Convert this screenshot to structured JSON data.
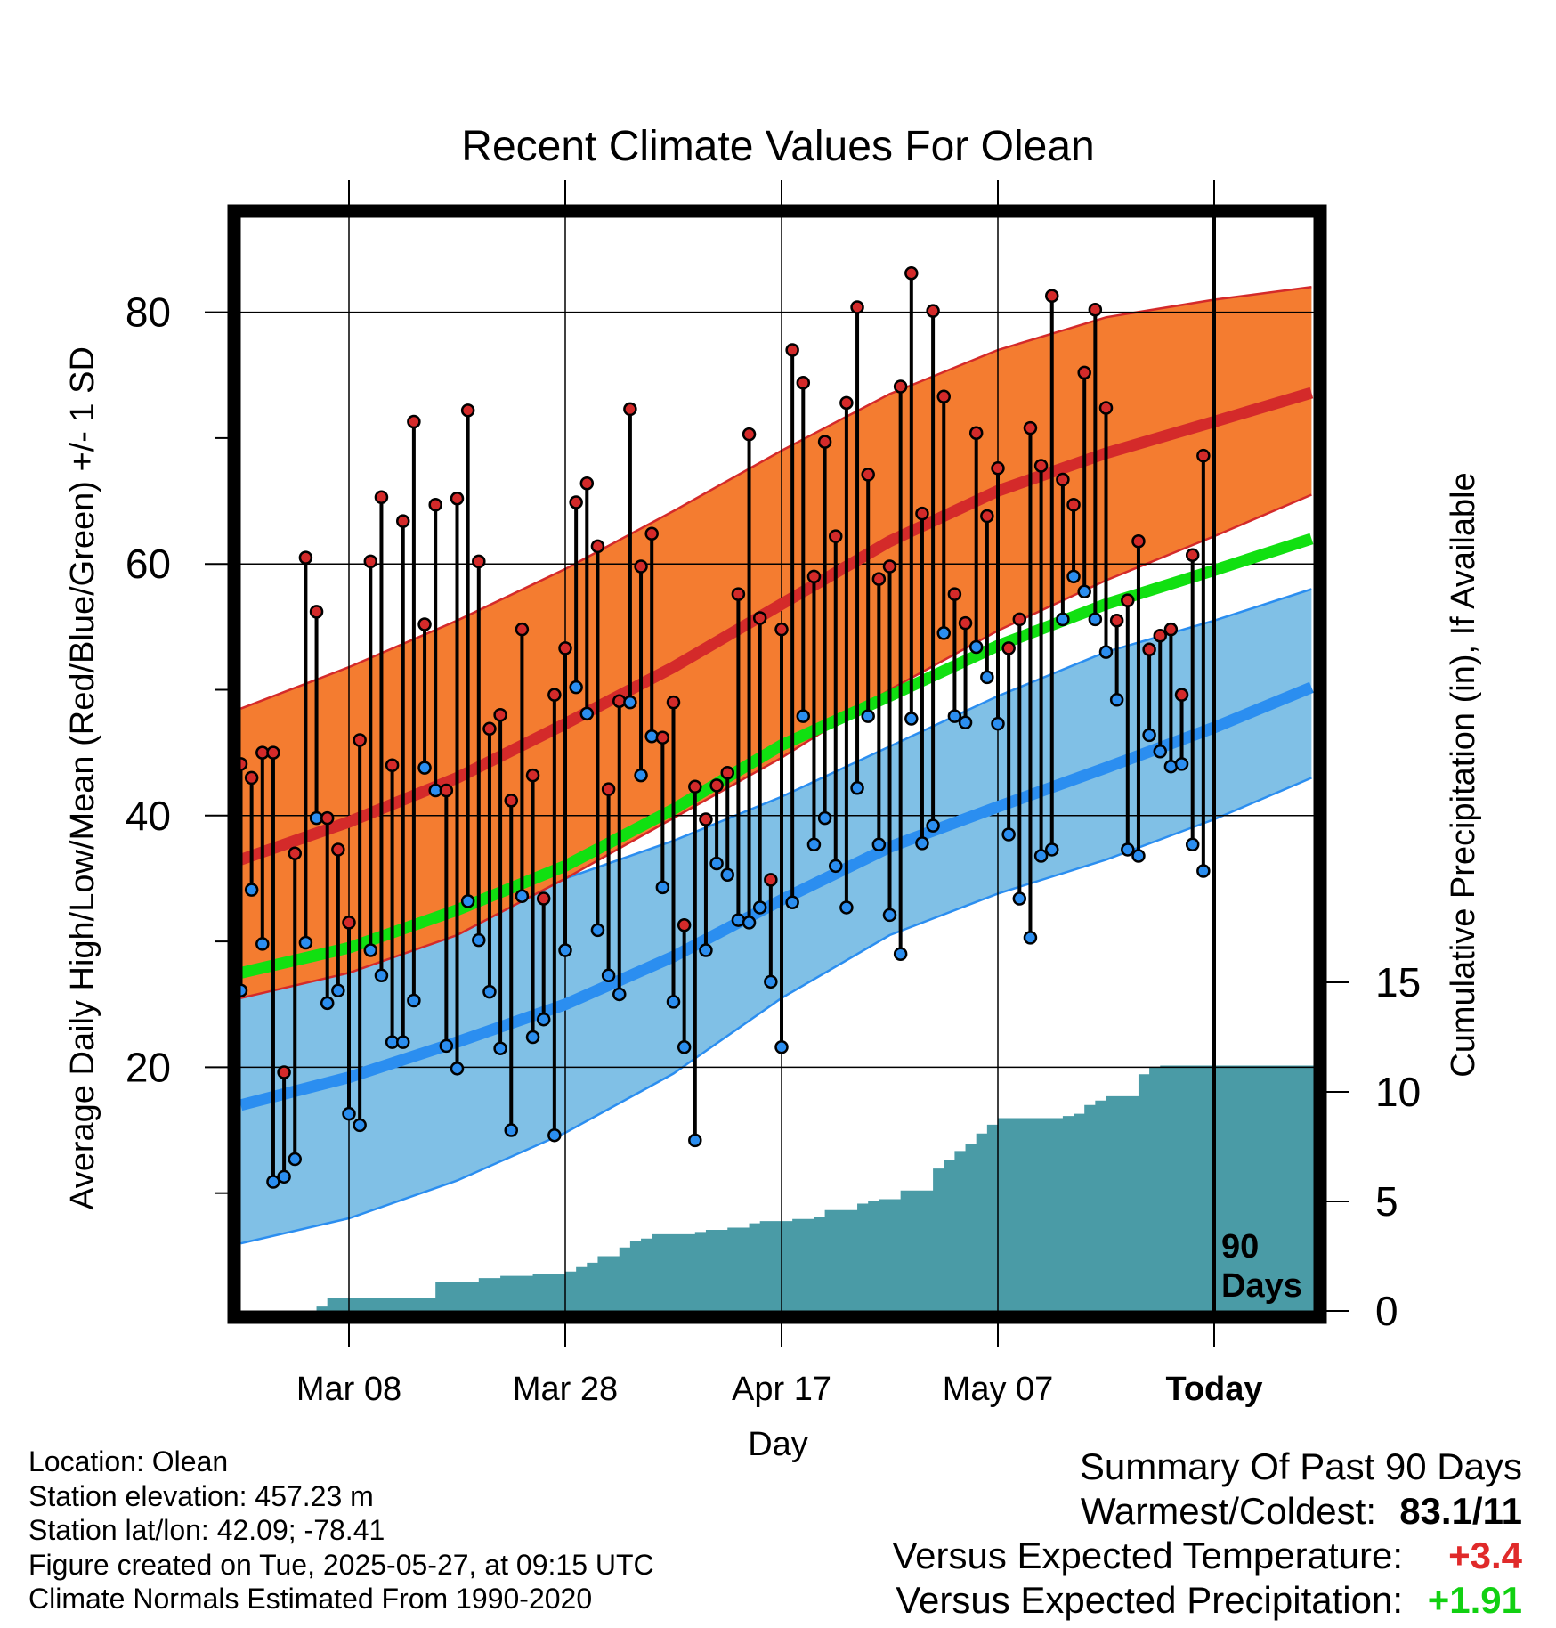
{
  "chart_data": {
    "type": "line",
    "title": "Recent Climate Values For Olean",
    "ylabel": "Average Daily High/Low/Mean (Red/Blue/Green) +/- 1 SD",
    "y2label": "Cumulative Precipitation (in), If Available",
    "xlabel": "Day",
    "ylim": [
      0,
      87
    ],
    "y2lim": [
      0,
      30
    ],
    "xlim": [
      -10,
      89
    ],
    "x_tick_labels": [
      {
        "day": 0,
        "label": "Mar 08"
      },
      {
        "day": 20,
        "label": "Mar 28"
      },
      {
        "day": 40,
        "label": "Apr 17"
      },
      {
        "day": 60,
        "label": "May 07"
      },
      {
        "day": 80,
        "label": "Today"
      }
    ],
    "y_ticks": [
      20,
      40,
      60,
      80
    ],
    "y2_ticks": [
      0,
      5,
      10,
      15
    ],
    "grid": true,
    "today_day": 80,
    "annotation": [
      "90",
      "Days"
    ],
    "colors": {
      "high_band": "#f47c30",
      "high_mean": "#d42a2a",
      "low_band": "#80c0e6",
      "low_mean": "#2b8ef0",
      "mean_line": "#11e011",
      "precip": "#4a9ba6",
      "high_dot": "#d42a2a",
      "low_dot": "#2b8ef0"
    },
    "normals_x": [
      -10,
      0,
      10,
      20,
      30,
      40,
      50,
      60,
      70,
      80,
      89
    ],
    "normal_high": {
      "mean": [
        36.5,
        39.5,
        43.0,
        47.3,
        51.8,
        56.8,
        61.8,
        65.8,
        68.8,
        71.3,
        73.6
      ],
      "upper": [
        48.5,
        51.8,
        55.5,
        59.6,
        64.2,
        69.0,
        73.5,
        77.0,
        79.6,
        81.0,
        82.0
      ],
      "lower": [
        25.5,
        27.5,
        30.5,
        35.0,
        39.8,
        44.6,
        50.0,
        54.7,
        58.7,
        62.2,
        65.5
      ]
    },
    "normal_low": {
      "mean": [
        17.0,
        19.2,
        22.0,
        25.0,
        28.8,
        33.3,
        37.5,
        40.7,
        43.8,
        47.0,
        50.2
      ],
      "upper": [
        28.5,
        30.2,
        32.5,
        35.0,
        38.0,
        41.5,
        45.5,
        49.5,
        53.0,
        55.5,
        58.0
      ],
      "lower": [
        6.0,
        8.0,
        11.0,
        14.8,
        19.5,
        25.5,
        30.5,
        33.8,
        36.5,
        39.7,
        43.0
      ]
    },
    "normal_mean": [
      27.5,
      29.5,
      32.5,
      36.0,
      40.5,
      45.6,
      49.5,
      53.5,
      56.8,
      59.5,
      62.0
    ],
    "daily_high": [
      44.1,
      43.0,
      45.0,
      45.0,
      19.6,
      37.0,
      60.5,
      56.2,
      39.8,
      37.3,
      31.5,
      46.0,
      60.2,
      65.3,
      44.0,
      63.4,
      71.3,
      55.2,
      64.7,
      42.0,
      65.2,
      72.2,
      60.2,
      46.9,
      48.0,
      41.2,
      54.8,
      43.2,
      33.4,
      49.6,
      53.3,
      64.9,
      66.4,
      61.4,
      42.1,
      49.1,
      72.3,
      59.8,
      62.4,
      46.2,
      49.0,
      31.3,
      42.3,
      39.7,
      42.4,
      43.4,
      57.6,
      70.3,
      55.7,
      34.9,
      54.8,
      77.0,
      74.4,
      59.0,
      69.7,
      62.2,
      72.8,
      80.4,
      67.1,
      58.8,
      59.8,
      74.1,
      83.1,
      64.0,
      80.1,
      73.3,
      57.6,
      55.3,
      70.4,
      63.8,
      67.6,
      53.3,
      55.6,
      70.8,
      67.8,
      81.3,
      66.7,
      64.7,
      75.2,
      80.2,
      72.4,
      55.5,
      57.1,
      61.8,
      53.2,
      54.3,
      54.8,
      49.6,
      60.7,
      68.6
    ],
    "daily_low": [
      26.1,
      34.1,
      29.8,
      10.9,
      11.3,
      12.7,
      29.9,
      39.8,
      25.1,
      26.1,
      16.3,
      15.4,
      29.3,
      27.3,
      22.0,
      22.0,
      25.3,
      43.8,
      42.0,
      21.7,
      19.9,
      33.2,
      30.1,
      26.0,
      21.5,
      15.0,
      33.6,
      22.4,
      23.8,
      14.6,
      29.3,
      50.2,
      48.1,
      30.9,
      27.3,
      25.8,
      49.0,
      43.2,
      46.3,
      34.3,
      25.2,
      21.6,
      14.2,
      29.3,
      36.2,
      35.3,
      31.7,
      31.5,
      32.7,
      26.8,
      21.6,
      33.1,
      47.9,
      37.7,
      39.8,
      36.0,
      32.7,
      42.2,
      47.9,
      37.7,
      32.1,
      29.0,
      47.7,
      37.8,
      39.2,
      54.5,
      47.9,
      47.4,
      53.4,
      51.0,
      47.3,
      38.5,
      33.4,
      30.3,
      36.8,
      37.3,
      55.6,
      59.0,
      57.8,
      55.6,
      53.0,
      49.2,
      37.3,
      36.8,
      46.4,
      45.1,
      43.9,
      44.1,
      37.7,
      35.6
    ],
    "precip_cum": [
      0,
      0,
      0,
      0,
      0,
      0,
      0,
      0.2,
      0.6,
      0.6,
      0.6,
      0.6,
      0.6,
      0.6,
      0.6,
      0.6,
      0.6,
      0.6,
      1.3,
      1.3,
      1.3,
      1.3,
      1.5,
      1.5,
      1.6,
      1.6,
      1.6,
      1.7,
      1.7,
      1.7,
      1.8,
      2.0,
      2.2,
      2.5,
      2.5,
      2.9,
      3.2,
      3.3,
      3.5,
      3.5,
      3.5,
      3.5,
      3.6,
      3.7,
      3.7,
      3.8,
      3.8,
      4.0,
      4.1,
      4.1,
      4.1,
      4.2,
      4.2,
      4.3,
      4.6,
      4.6,
      4.6,
      4.9,
      5.0,
      5.1,
      5.1,
      5.5,
      5.5,
      5.5,
      6.5,
      6.9,
      7.3,
      7.6,
      8.1,
      8.5,
      8.8,
      8.8,
      8.8,
      8.8,
      8.8,
      8.8,
      8.9,
      9.0,
      9.4,
      9.6,
      9.8,
      9.8,
      9.8,
      10.8,
      11.1,
      11.2,
      11.2,
      11.2,
      11.2,
      11.2
    ]
  },
  "info": {
    "location": "Location: Olean",
    "elevation": "Station elevation: 457.23 m",
    "latlon": "Station lat/lon: 42.09; -78.41",
    "created": "Figure created on Tue, 2025-05-27, at 09:15 UTC",
    "normals": "Climate Normals Estimated From 1990-2020"
  },
  "summary": {
    "heading": "Summary Of Past 90 Days",
    "warmest_label": "Warmest/Coldest:",
    "warmest_value": "83.1/11",
    "temp_label": "Versus Expected Temperature:",
    "temp_value": "+3.4",
    "temp_color": "#e02a2a",
    "precip_label": "Versus Expected Precipitation:",
    "precip_value": "+1.91",
    "precip_color": "#11d011"
  }
}
